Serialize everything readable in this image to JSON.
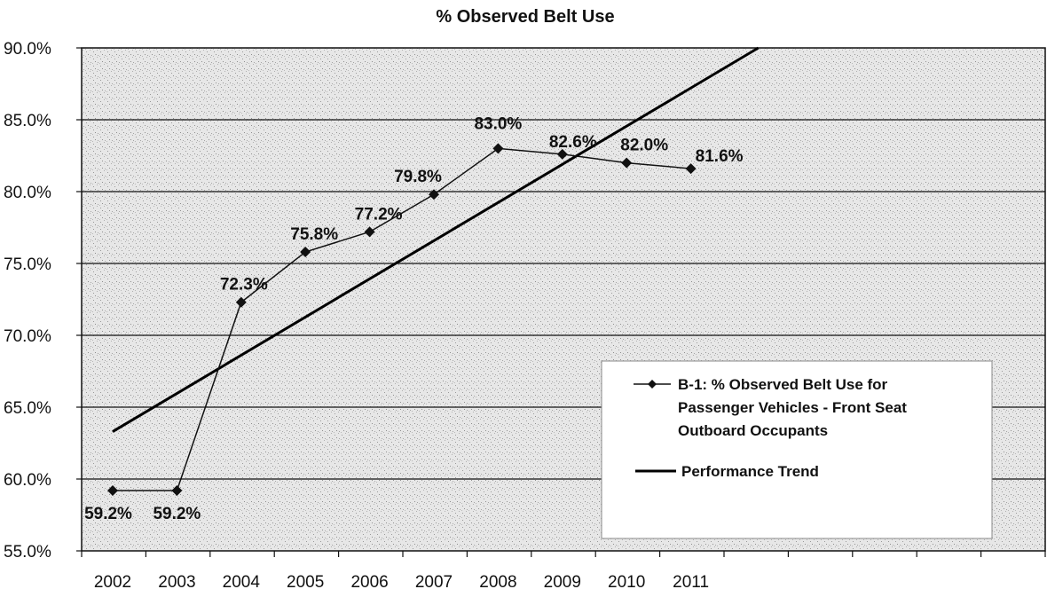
{
  "chart_data": {
    "type": "line",
    "title": "% Observed Belt Use",
    "xlabel": "",
    "ylabel": "",
    "categories": [
      "2002",
      "2003",
      "2004",
      "2005",
      "2006",
      "2007",
      "2008",
      "2009",
      "2010",
      "2011"
    ],
    "x_tick_labels": [
      "2002",
      "2003",
      "2004",
      "2005",
      "2006",
      "2007",
      "2008",
      "2009",
      "2010",
      "2011"
    ],
    "y_tick_labels": [
      "55.0%",
      "60.0%",
      "65.0%",
      "70.0%",
      "75.0%",
      "80.0%",
      "85.0%",
      "90.0%"
    ],
    "ylim": [
      55,
      90
    ],
    "grid": true,
    "legend_position": "bottom-right",
    "series": [
      {
        "name": "B-1: % Observed Belt Use for Passenger Vehicles - Front Seat Outboard Occupants",
        "legend_lines": [
          "B-1: % Observed Belt Use for",
          "Passenger Vehicles - Front Seat",
          "Outboard Occupants"
        ],
        "marker": "diamond",
        "color": "#111111",
        "values": [
          59.2,
          59.2,
          72.3,
          75.8,
          77.2,
          79.8,
          83.0,
          82.6,
          82.0,
          81.6
        ],
        "data_labels": [
          "59.2%",
          "59.2%",
          "72.3%",
          "75.8%",
          "77.2%",
          "79.8%",
          "83.0%",
          "82.6%",
          "82.0%",
          "81.6%"
        ]
      },
      {
        "name": "Performance Trend",
        "legend_lines": [
          "Performance Trend"
        ],
        "color": "#000000",
        "linear": true,
        "start": [
          2002,
          63.3
        ],
        "end": [
          2012.05,
          90.0
        ]
      }
    ]
  }
}
